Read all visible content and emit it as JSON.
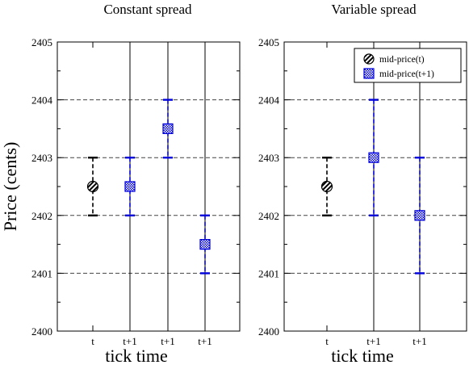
{
  "chart_data": [
    {
      "type": "scatter",
      "title": "Constant spread",
      "xlabel": "tick time",
      "ylabel": "Price (cents)",
      "ylim": [
        2400,
        2405
      ],
      "yticks": [
        "2400",
        "2401",
        "2402",
        "2403",
        "2404",
        "2405"
      ],
      "categories": [
        "t",
        "t+1",
        "t+1",
        "t+1"
      ],
      "gridlines_y": [
        2401,
        2402,
        2403,
        2404
      ],
      "series": [
        {
          "name": "mid-price(t)",
          "color": "#000000",
          "marker": "hatched-circle",
          "points": [
            {
              "x": 0,
              "y": 2402.5,
              "low": 2402,
              "high": 2403
            }
          ]
        },
        {
          "name": "mid-price(t+1)",
          "color": "#0000dd",
          "marker": "checkered-square",
          "points": [
            {
              "x": 1,
              "y": 2402.5,
              "low": 2402,
              "high": 2403
            },
            {
              "x": 2,
              "y": 2403.5,
              "low": 2403,
              "high": 2404
            },
            {
              "x": 3,
              "y": 2401.5,
              "low": 2401,
              "high": 2402
            }
          ]
        }
      ],
      "legend": false
    },
    {
      "type": "scatter",
      "title": "Variable spread",
      "xlabel": "tick time",
      "ylabel": "",
      "ylim": [
        2400,
        2405
      ],
      "yticks": [
        "2400",
        "2401",
        "2402",
        "2403",
        "2404",
        "2405"
      ],
      "categories": [
        "t",
        "t+1",
        "t+1"
      ],
      "gridlines_y": [
        2401,
        2402,
        2403,
        2404
      ],
      "series": [
        {
          "name": "mid-price(t)",
          "color": "#000000",
          "marker": "hatched-circle",
          "points": [
            {
              "x": 0,
              "y": 2402.5,
              "low": 2402,
              "high": 2403
            }
          ]
        },
        {
          "name": "mid-price(t+1)",
          "color": "#0000dd",
          "marker": "checkered-square",
          "points": [
            {
              "x": 1,
              "y": 2403,
              "low": 2402,
              "high": 2404
            },
            {
              "x": 2,
              "y": 2402,
              "low": 2401,
              "high": 2403
            }
          ]
        }
      ],
      "legend": true,
      "legend_position": "top-right"
    }
  ]
}
